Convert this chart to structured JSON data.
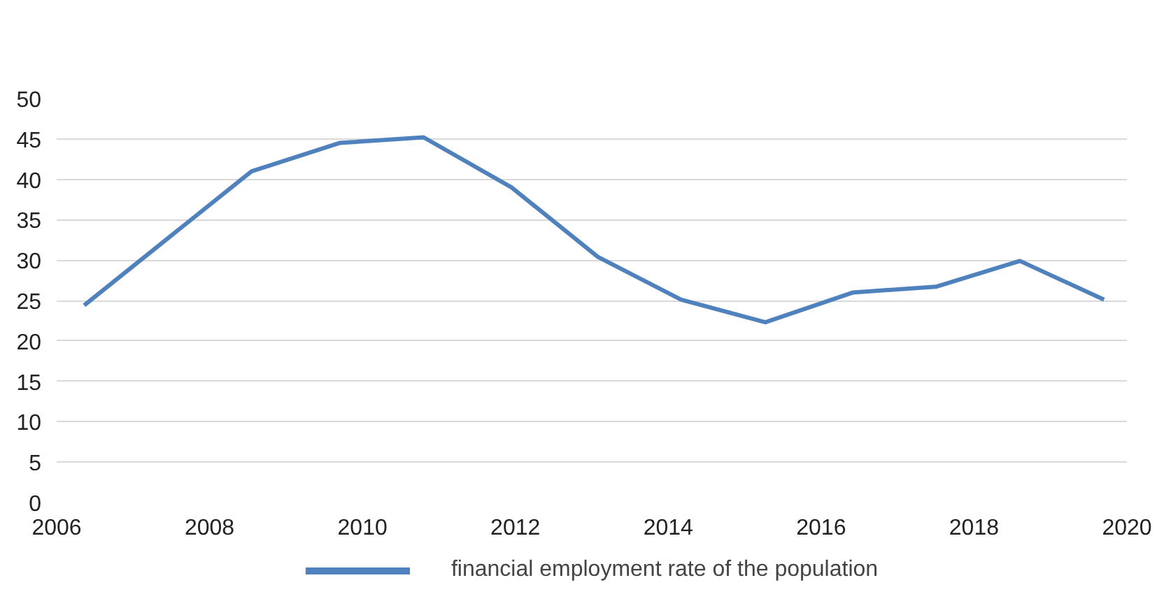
{
  "chart_data": {
    "type": "line",
    "x": [
      2006.36,
      2008.55,
      2009.7,
      2010.8,
      2011.95,
      2013.08,
      2014.17,
      2015.27,
      2016.42,
      2017.5,
      2018.6,
      2019.7
    ],
    "series": [
      {
        "name": "financial employment rate of the population",
        "color": "#4f81bd",
        "values": [
          24.4,
          41.0,
          44.5,
          45.2,
          39.0,
          30.4,
          25.1,
          22.3,
          26.0,
          26.7,
          29.9,
          25.1
        ]
      }
    ],
    "xlim": [
      2006,
      2020
    ],
    "xticks": [
      2006,
      2008,
      2010,
      2012,
      2014,
      2016,
      2018,
      2020
    ],
    "ylim": [
      0,
      50
    ],
    "yticks": [
      0,
      5,
      10,
      15,
      20,
      25,
      30,
      35,
      40,
      45,
      50
    ],
    "grid": "y",
    "legend": "bottom",
    "marker": "none",
    "line_style": "solid"
  }
}
